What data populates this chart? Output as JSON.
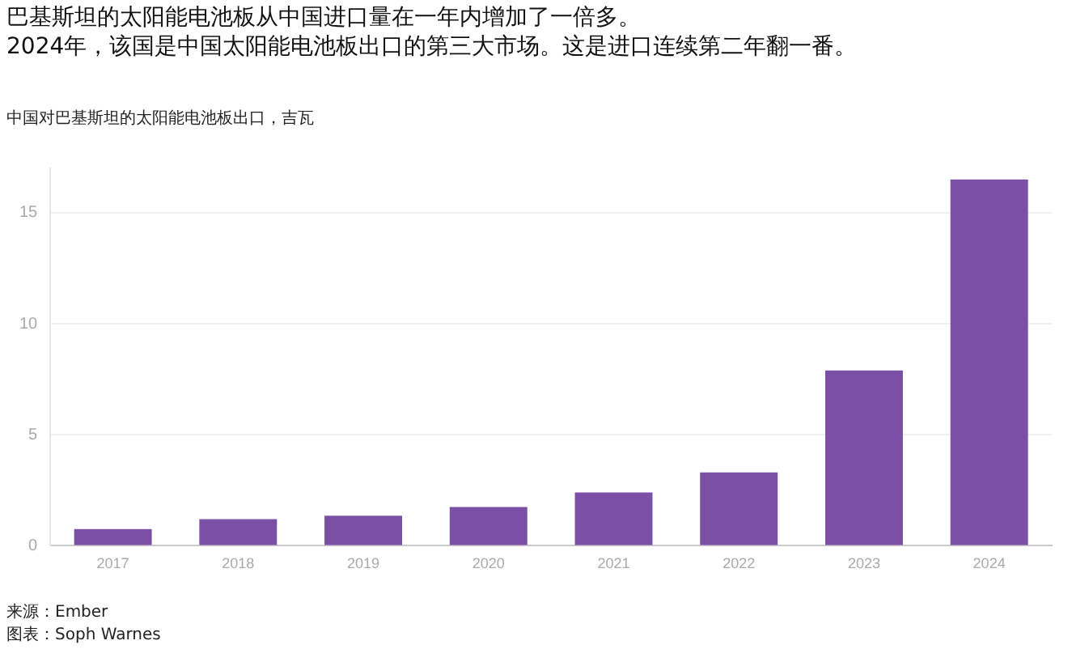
{
  "chart_data": {
    "type": "bar",
    "title": "巴基斯坦的太阳能电池板从中国进口量在一年内增加了一倍多。",
    "subtitle": "2024年，该国是中国太阳能电池板出口的第三大市场。这是进口连续第二年翻一番。",
    "ylabel": "中国对巴基斯坦的太阳能电池板出口，吉瓦",
    "categories": [
      "2017",
      "2018",
      "2019",
      "2020",
      "2021",
      "2022",
      "2023",
      "2024"
    ],
    "values": [
      0.75,
      1.2,
      1.35,
      1.75,
      2.4,
      3.3,
      7.9,
      16.5
    ],
    "color": "#7b4fa6",
    "ylim": [
      0,
      17
    ],
    "yticks": [
      0,
      5,
      10,
      15
    ],
    "grid": "y",
    "legend": false,
    "annotations": [
      "来源：Ember",
      "图表：Soph Warnes"
    ]
  }
}
